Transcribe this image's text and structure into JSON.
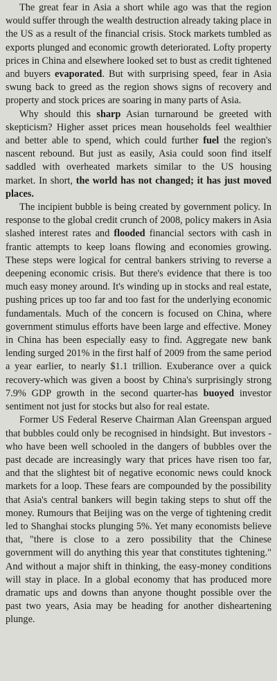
{
  "article": {
    "paragraphs": [
      {
        "runs": [
          {
            "text": "The great fear in Asia a short while ago was that the region would suffer through the wealth destruction already taking place in the US as a result of the financial crisis. Stock markets tumbled as exports plunged and economic growth deteriorated. Lofty property prices in China and elsewhere looked set to bust as credit tightened and buyers "
          },
          {
            "text": "evaporated",
            "bold": true
          },
          {
            "text": ". But with surprising speed, fear in Asia swung back to greed as the region shows signs of recovery and property and stock prices are soaring in many parts of Asia."
          }
        ]
      },
      {
        "runs": [
          {
            "text": "Why should this "
          },
          {
            "text": "sharp",
            "bold": true
          },
          {
            "text": " Asian turnaround be greeted with skepticism? Higher asset prices mean households feel wealthier and better able to spend, which could further "
          },
          {
            "text": "fuel",
            "bold": true
          },
          {
            "text": " the region's nascent rebound. But just as easily, Asia could soon find itself saddled with overheated markets similar to the US housing market. In short, "
          },
          {
            "text": "the world has not changed; it has just moved places.",
            "bold": true
          }
        ]
      },
      {
        "runs": [
          {
            "text": "The incipient bubble is being created by government policy. In response to the global credit crunch of 2008, policy makers in Asia slashed interest rates and "
          },
          {
            "text": "flooded",
            "bold": true
          },
          {
            "text": " financial sectors with cash in frantic attempts to keep loans flowing and economies growing. These steps were logical for central bankers striving to reverse a deepening economic crisis. But there's evidence that there is too much easy money around. It's winding up in stocks and real estate, pushing prices up too far and too fast for the underlying economic fundamentals. Much of the concern is focused on China, where government stimulus efforts have been large and effective. Money in China has been especially easy to find. Aggregate new bank lending surged 201% in the first half of 2009 from the same period a year earlier, to nearly $1.1 trillion. Exuberance over a quick recovery-which was given a boost by China's surprisingly strong 7.9% GDP growth in the second quarter-has "
          },
          {
            "text": "buoyed",
            "bold": true
          },
          {
            "text": " investor sentiment not just for stocks but also for real estate."
          }
        ]
      },
      {
        "runs": [
          {
            "text": "Former US Federal Reserve Chairman Alan Greenspan argued that bubbles could only be recognised in hindsight. But investors - who have been well schooled in the dangers of bubbles over the past decade are increasingly wary that prices have risen too far, and that the slightest bit of negative economic news could knock markets for a loop. These fears are compounded by the possibility that Asia's central bankers will begin taking steps to shut off the money. Rumours that Beijing was on the verge of tightening credit led to Shanghai stocks plunging 5%. Yet many economists believe that, \"there is close to a zero possibility that the Chinese government will do anything this year that constitutes tightening.\" And without a major shift in thinking, the easy-money conditions will stay in place. In a global economy that has produced more dramatic ups and downs than anyone thought possible over the past two years, Asia may be heading for another disheartening plunge."
          }
        ]
      }
    ]
  }
}
